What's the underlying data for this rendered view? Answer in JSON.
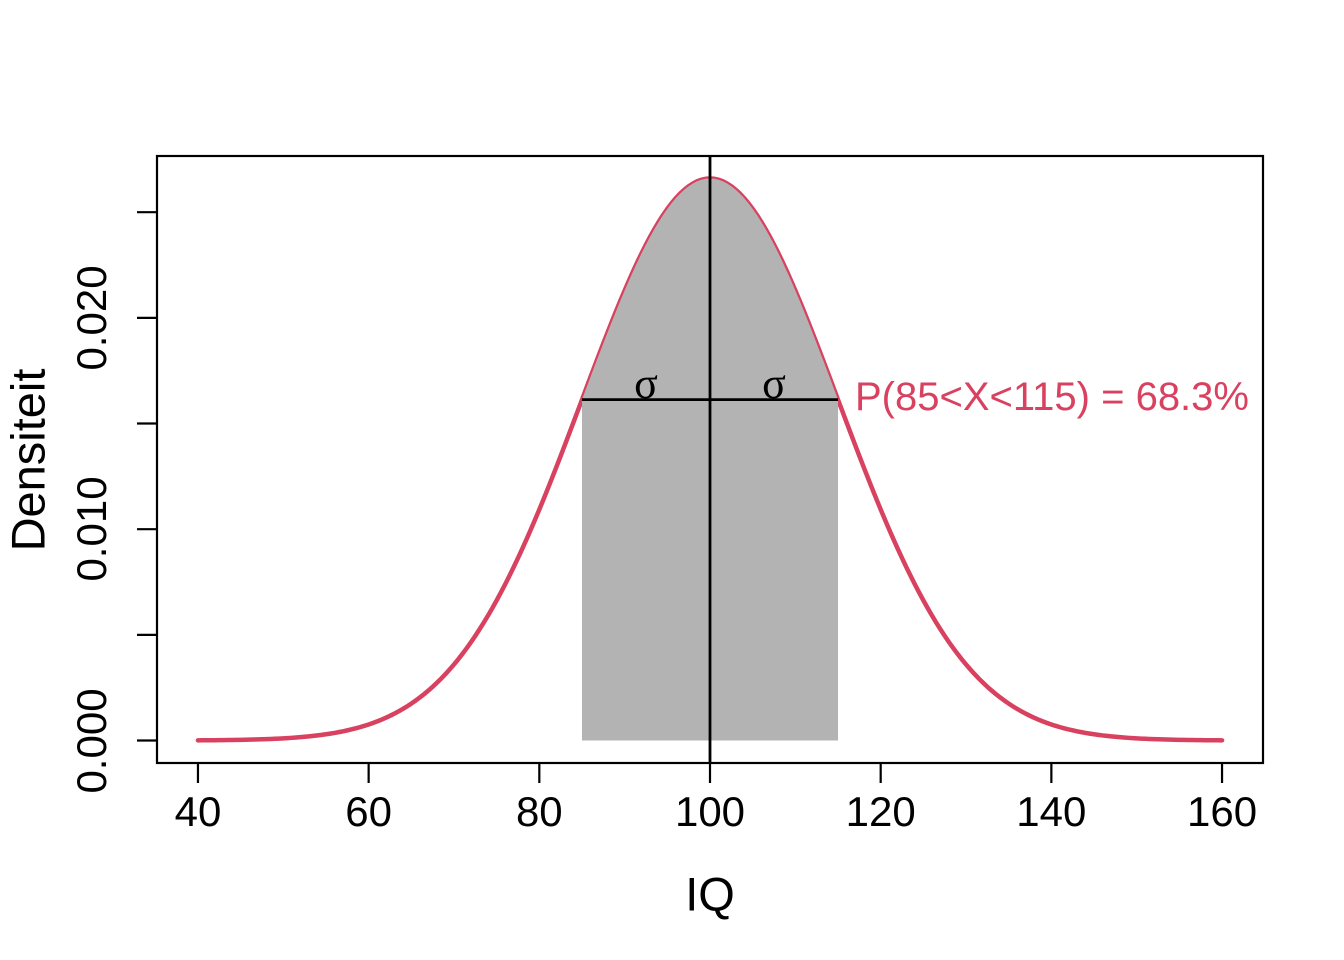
{
  "chart_data": {
    "type": "line",
    "curve": "normal-density",
    "mean": 100,
    "sd": 15,
    "x_range": [
      40,
      160
    ],
    "ylim": [
      0,
      0.0266
    ],
    "xlabel": "IQ",
    "ylabel": "Densiteit",
    "x_tick_values": [
      40,
      60,
      80,
      100,
      120,
      140,
      160
    ],
    "x_tick_labels": [
      "40",
      "60",
      "80",
      "100",
      "120",
      "140",
      "160"
    ],
    "y_tick_values": [
      0,
      0.005,
      0.01,
      0.015,
      0.02,
      0.025
    ],
    "y_tick_labels": [
      "0.000",
      "",
      "0.010",
      "",
      "0.020",
      ""
    ],
    "shaded_region": {
      "from": 85,
      "to": 115,
      "fill": "#B3B3B3"
    },
    "mean_line_x": 100,
    "sigma_line": {
      "from": 85,
      "to": 115,
      "at_density_of": 85
    },
    "sigma_label": "σ",
    "annotation": {
      "text": "P(85<X<115) = 68.3%",
      "anchor_x": 117,
      "color": "#D8415F"
    },
    "curve_color": "#D8415F",
    "axis_color": "#000000",
    "background": "#FFFFFF",
    "grid": false,
    "legend": false
  }
}
